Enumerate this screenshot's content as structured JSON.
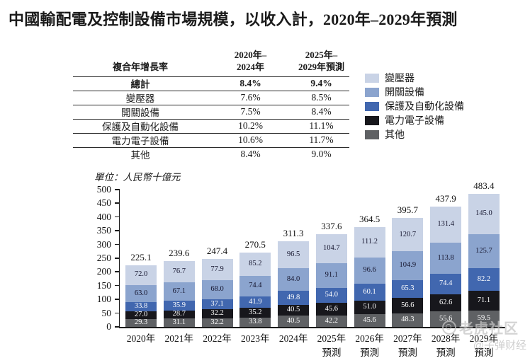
{
  "title": "中國輸配電及控制設備市場規模，以收入計，2020年–2029年預測",
  "table": {
    "header": [
      "複合年增長率",
      "2020年–\n2024年",
      "2025年–\n2029年預測"
    ],
    "rows": [
      {
        "label": "總計",
        "cagr_2020_2024": "8.4%",
        "cagr_2025_2029": "9.4%",
        "bold": true
      },
      {
        "label": "變壓器",
        "cagr_2020_2024": "7.6%",
        "cagr_2025_2029": "8.5%",
        "bold": false
      },
      {
        "label": "開關設備",
        "cagr_2020_2024": "7.5%",
        "cagr_2025_2029": "8.4%",
        "bold": false
      },
      {
        "label": "保護及自動化設備",
        "cagr_2020_2024": "10.2%",
        "cagr_2025_2029": "11.1%",
        "bold": false
      },
      {
        "label": "電力電子設備",
        "cagr_2020_2024": "10.6%",
        "cagr_2025_2029": "11.7%",
        "bold": false
      },
      {
        "label": "其他",
        "cagr_2020_2024": "8.4%",
        "cagr_2025_2029": "9.0%",
        "bold": false
      }
    ]
  },
  "unit_note": "單位：人民幣十億元",
  "legend": [
    {
      "label": "變壓器",
      "color": "#c9d3e6"
    },
    {
      "label": "開關設備",
      "color": "#8ba4ce"
    },
    {
      "label": "保護及自動化設備",
      "color": "#4167af"
    },
    {
      "label": "電力電子設備",
      "color": "#17171c"
    },
    {
      "label": "其他",
      "color": "#5f6164"
    }
  ],
  "chart_data": {
    "type": "bar",
    "stacked": true,
    "title": "中國輸配電及控制設備市場規模，以收入計，2020年–2029年預測",
    "ylabel": "人民幣十億元",
    "ylim": [
      0,
      500
    ],
    "yticks": [
      0,
      50,
      100,
      150,
      200,
      250,
      300,
      350,
      400,
      450,
      500
    ],
    "grid": false,
    "legend_position": "upper-right",
    "categories": [
      "2020年",
      "2021年",
      "2022年",
      "2023年",
      "2024年",
      "2025年\n預測",
      "2026年\n預測",
      "2027年\n預測",
      "2028年\n預測",
      "2029年\n預測"
    ],
    "series": [
      {
        "name": "其他",
        "color": "#5f6164",
        "text_color": "#ffffff",
        "values": [
          29.3,
          31.1,
          32.2,
          33.8,
          40.5,
          42.2,
          45.6,
          48.3,
          55.6,
          59.5
        ]
      },
      {
        "name": "電力電子設備",
        "color": "#17171c",
        "text_color": "#ffffff",
        "values": [
          27.0,
          28.7,
          32.2,
          35.2,
          40.5,
          45.6,
          51.0,
          56.6,
          62.6,
          71.1
        ]
      },
      {
        "name": "保護及自動化設備",
        "color": "#4167af",
        "text_color": "#ffffff",
        "values": [
          33.8,
          35.9,
          37.1,
          41.9,
          49.8,
          54.0,
          60.1,
          65.3,
          74.4,
          82.2
        ]
      },
      {
        "name": "開關設備",
        "color": "#8ba4ce",
        "text_color": "#15152e",
        "values": [
          63.0,
          67.1,
          68.0,
          74.4,
          84.0,
          91.1,
          96.6,
          104.9,
          113.8,
          125.7
        ]
      },
      {
        "name": "變壓器",
        "color": "#c9d3e6",
        "text_color": "#15152e",
        "values": [
          72.0,
          76.7,
          77.9,
          85.2,
          96.5,
          104.7,
          111.2,
          120.7,
          131.4,
          145.0
        ]
      }
    ],
    "totals": [
      225.1,
      239.6,
      247.4,
      270.5,
      311.3,
      337.6,
      364.5,
      395.7,
      437.9,
      483.4
    ]
  },
  "watermarks": {
    "community": "老虎社区",
    "author": "@子弹财经"
  }
}
